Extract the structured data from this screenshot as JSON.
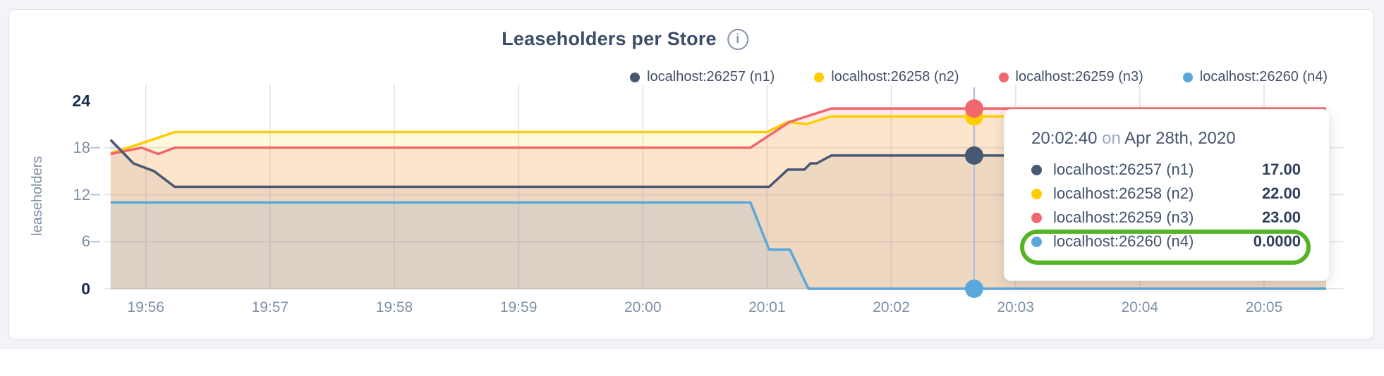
{
  "page": {
    "title": "Leaseholders per Store",
    "info_glyph": "i"
  },
  "legend": {
    "items": [
      {
        "label": "localhost:26257 (n1)",
        "color": "#475872"
      },
      {
        "label": "localhost:26258 (n2)",
        "color": "#ffcd00"
      },
      {
        "label": "localhost:26259 (n3)",
        "color": "#f1686c"
      },
      {
        "label": "localhost:26260 (n4)",
        "color": "#5aa8db"
      }
    ]
  },
  "chart_data": {
    "type": "area",
    "title": "Leaseholders per Store",
    "xlabel": "",
    "ylabel": "leaseholders",
    "ylim": [
      0,
      24
    ],
    "grid": true,
    "legend_position": "top-right",
    "x_unit": "seconds after 19:55:40",
    "x_range": [
      0,
      590
    ],
    "y_ticks": [
      24,
      18,
      12,
      6,
      0
    ],
    "x_ticks": [
      {
        "label": "19:56",
        "t": 20
      },
      {
        "label": "19:57",
        "t": 80
      },
      {
        "label": "19:58",
        "t": 140
      },
      {
        "label": "19:59",
        "t": 200
      },
      {
        "label": "20:00",
        "t": 260
      },
      {
        "label": "20:01",
        "t": 320
      },
      {
        "label": "20:02",
        "t": 380
      },
      {
        "label": "20:03",
        "t": 440
      },
      {
        "label": "20:04",
        "t": 500
      },
      {
        "label": "20:05",
        "t": 560
      }
    ],
    "series": [
      {
        "name": "localhost:26257 (n1)",
        "color": "#475872",
        "points": [
          [
            3,
            19
          ],
          [
            14,
            16
          ],
          [
            24,
            15
          ],
          [
            34,
            13
          ],
          [
            321,
            13
          ],
          [
            330,
            15.2
          ],
          [
            338,
            15.2
          ],
          [
            341,
            16
          ],
          [
            344,
            16
          ],
          [
            351,
            17
          ],
          [
            590,
            17
          ]
        ]
      },
      {
        "name": "localhost:26258 (n2)",
        "color": "#ffcd00",
        "points": [
          [
            3,
            17.3
          ],
          [
            15,
            18.3
          ],
          [
            34,
            20
          ],
          [
            320,
            20
          ],
          [
            330,
            21.3
          ],
          [
            339,
            21
          ],
          [
            351,
            22
          ],
          [
            590,
            22
          ]
        ]
      },
      {
        "name": "localhost:26259 (n3)",
        "color": "#f1686c",
        "points": [
          [
            3,
            17.2
          ],
          [
            18,
            18
          ],
          [
            26,
            17.2
          ],
          [
            34,
            18
          ],
          [
            312,
            18
          ],
          [
            331,
            21.3
          ],
          [
            351,
            23
          ],
          [
            590,
            23
          ]
        ]
      },
      {
        "name": "localhost:26260 (n4)",
        "color": "#5aa8db",
        "points": [
          [
            3,
            11
          ],
          [
            312,
            11
          ],
          [
            321,
            5
          ],
          [
            331,
            5
          ],
          [
            340,
            0
          ],
          [
            590,
            0
          ]
        ]
      }
    ]
  },
  "crosshair": {
    "t": 420,
    "time_label": "20:02:40",
    "values": [
      17,
      22,
      23,
      0
    ]
  },
  "tooltip": {
    "time": "20:02:40",
    "conjunction": "on",
    "date": "Apr 28th, 2020",
    "rows": [
      {
        "label": "localhost:26257 (n1)",
        "value": "17.00",
        "color": "#475872",
        "highlighted": false
      },
      {
        "label": "localhost:26258 (n2)",
        "value": "22.00",
        "color": "#ffcd00",
        "highlighted": false
      },
      {
        "label": "localhost:26259 (n3)",
        "value": "23.00",
        "color": "#f1686c",
        "highlighted": false
      },
      {
        "label": "localhost:26260 (n4)",
        "value": "0.0000",
        "color": "#5aa8db",
        "highlighted": true
      }
    ],
    "highlight_color": "#54b426"
  }
}
